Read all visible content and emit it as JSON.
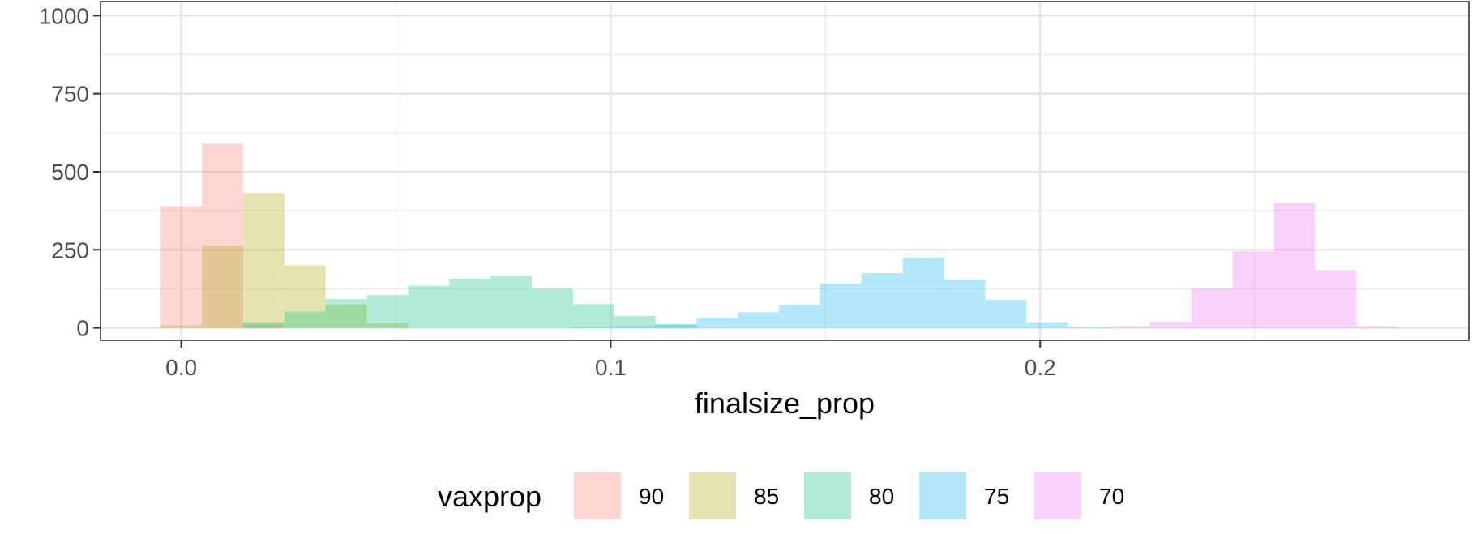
{
  "chart_data": {
    "type": "histogram",
    "xlabel": "finalsize_prop",
    "ylabel": "",
    "x_ticks": [
      0.0,
      0.1,
      0.2
    ],
    "x_tick_labels": [
      "0.0",
      "0.1",
      "0.2"
    ],
    "y_ticks": [
      0,
      250,
      500,
      750,
      1000
    ],
    "y_tick_labels": [
      "0",
      "250",
      "500",
      "750",
      "1000"
    ],
    "xlim": [
      -0.0188,
      0.2998
    ],
    "ylim": [
      -40,
      1045
    ],
    "grid": true,
    "bin_width": 0.0096,
    "legend": {
      "title": "vaxprop",
      "position": "bottom"
    },
    "series": [
      {
        "name": "90",
        "color": "#F8766D",
        "bins": [
          {
            "x0": -0.0048,
            "x1": 0.0048,
            "count": 390
          },
          {
            "x0": 0.0048,
            "x1": 0.0144,
            "count": 590
          },
          {
            "x0": 0.0144,
            "x1": 0.024,
            "count": 10
          }
        ]
      },
      {
        "name": "85",
        "color": "#A3A500",
        "bins": [
          {
            "x0": -0.0048,
            "x1": 0.0048,
            "count": 8
          },
          {
            "x0": 0.0048,
            "x1": 0.0144,
            "count": 262
          },
          {
            "x0": 0.0144,
            "x1": 0.024,
            "count": 432
          },
          {
            "x0": 0.024,
            "x1": 0.0336,
            "count": 200
          },
          {
            "x0": 0.0336,
            "x1": 0.0432,
            "count": 75
          },
          {
            "x0": 0.0432,
            "x1": 0.0528,
            "count": 15
          }
        ]
      },
      {
        "name": "80",
        "color": "#00BF7D",
        "bins": [
          {
            "x0": 0.0144,
            "x1": 0.024,
            "count": 18
          },
          {
            "x0": 0.024,
            "x1": 0.0336,
            "count": 52
          },
          {
            "x0": 0.0336,
            "x1": 0.0432,
            "count": 92
          },
          {
            "x0": 0.0432,
            "x1": 0.0528,
            "count": 105
          },
          {
            "x0": 0.0528,
            "x1": 0.0624,
            "count": 135
          },
          {
            "x0": 0.0624,
            "x1": 0.072,
            "count": 158
          },
          {
            "x0": 0.072,
            "x1": 0.0816,
            "count": 167
          },
          {
            "x0": 0.0816,
            "x1": 0.0912,
            "count": 125
          },
          {
            "x0": 0.0912,
            "x1": 0.1008,
            "count": 76
          },
          {
            "x0": 0.1008,
            "x1": 0.1104,
            "count": 38
          },
          {
            "x0": 0.1104,
            "x1": 0.12,
            "count": 10
          }
        ]
      },
      {
        "name": "75",
        "color": "#00B0F6",
        "bins": [
          {
            "x0": 0.0912,
            "x1": 0.1008,
            "count": 4
          },
          {
            "x0": 0.1008,
            "x1": 0.1104,
            "count": 6
          },
          {
            "x0": 0.1104,
            "x1": 0.12,
            "count": 12
          },
          {
            "x0": 0.12,
            "x1": 0.1296,
            "count": 32
          },
          {
            "x0": 0.1296,
            "x1": 0.1392,
            "count": 50
          },
          {
            "x0": 0.1392,
            "x1": 0.1488,
            "count": 74
          },
          {
            "x0": 0.1488,
            "x1": 0.1584,
            "count": 142
          },
          {
            "x0": 0.1584,
            "x1": 0.168,
            "count": 175
          },
          {
            "x0": 0.168,
            "x1": 0.1776,
            "count": 225
          },
          {
            "x0": 0.1776,
            "x1": 0.1872,
            "count": 155
          },
          {
            "x0": 0.1872,
            "x1": 0.1968,
            "count": 90
          },
          {
            "x0": 0.1968,
            "x1": 0.2064,
            "count": 18
          },
          {
            "x0": 0.2064,
            "x1": 0.216,
            "count": 3
          }
        ]
      },
      {
        "name": "70",
        "color": "#E76BF3",
        "bins": [
          {
            "x0": 0.216,
            "x1": 0.2256,
            "count": 5
          },
          {
            "x0": 0.2256,
            "x1": 0.2352,
            "count": 20
          },
          {
            "x0": 0.2352,
            "x1": 0.2448,
            "count": 127
          },
          {
            "x0": 0.2448,
            "x1": 0.2544,
            "count": 245
          },
          {
            "x0": 0.2544,
            "x1": 0.264,
            "count": 400
          },
          {
            "x0": 0.264,
            "x1": 0.2736,
            "count": 185
          },
          {
            "x0": 0.2736,
            "x1": 0.2832,
            "count": 5
          }
        ]
      }
    ]
  }
}
